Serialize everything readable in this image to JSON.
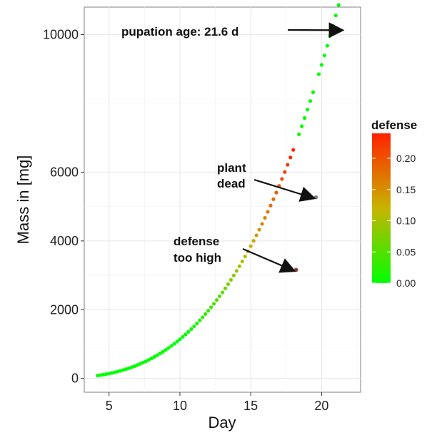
{
  "chart_data": {
    "type": "scatter",
    "xlabel": "Day",
    "ylabel": "Mass in [mg]",
    "xlim": [
      3.25,
      22.75
    ],
    "ylim": [
      -400,
      10800
    ],
    "xticks": [
      5,
      10,
      15,
      20
    ],
    "yticks": [
      0,
      2000,
      4000,
      6000,
      10000
    ],
    "grid": true,
    "growth_curve": {
      "x_start": 4.2,
      "x_step": 0.2,
      "x_end": 21.8,
      "mass": "y = 1.14 * x^3"
    },
    "defense_ramp": {
      "start_day": 10.0,
      "end_day": 18.0,
      "max_defense": 0.24
    },
    "point_markers": [
      {
        "x": 18.2,
        "y": 3160,
        "defense": null,
        "color": "#8b3a3a"
      },
      {
        "x": 19.6,
        "y": 5270,
        "defense": null,
        "color": "#808080"
      }
    ],
    "legend": {
      "title": "defense",
      "ticks": [
        "0.20",
        "0.15",
        "0.10",
        "0.05",
        "0.00"
      ],
      "tick_values": [
        0.2,
        0.15,
        0.1,
        0.05,
        0.0
      ],
      "range": [
        0,
        0.24
      ],
      "colors": {
        "low": "#00ff00",
        "high": "#ff2200"
      },
      "position": "right"
    },
    "annotations": [
      {
        "text_lines": [
          "pupation age: 21.6 d"
        ],
        "points_to": {
          "x": 21.6,
          "y": 10150
        }
      },
      {
        "text_lines": [
          "plant",
          "dead"
        ],
        "points_to": {
          "x": 19.6,
          "y": 5270
        }
      },
      {
        "text_lines": [
          "defense",
          "too high"
        ],
        "points_to": {
          "x": 18.2,
          "y": 3160
        }
      }
    ]
  }
}
